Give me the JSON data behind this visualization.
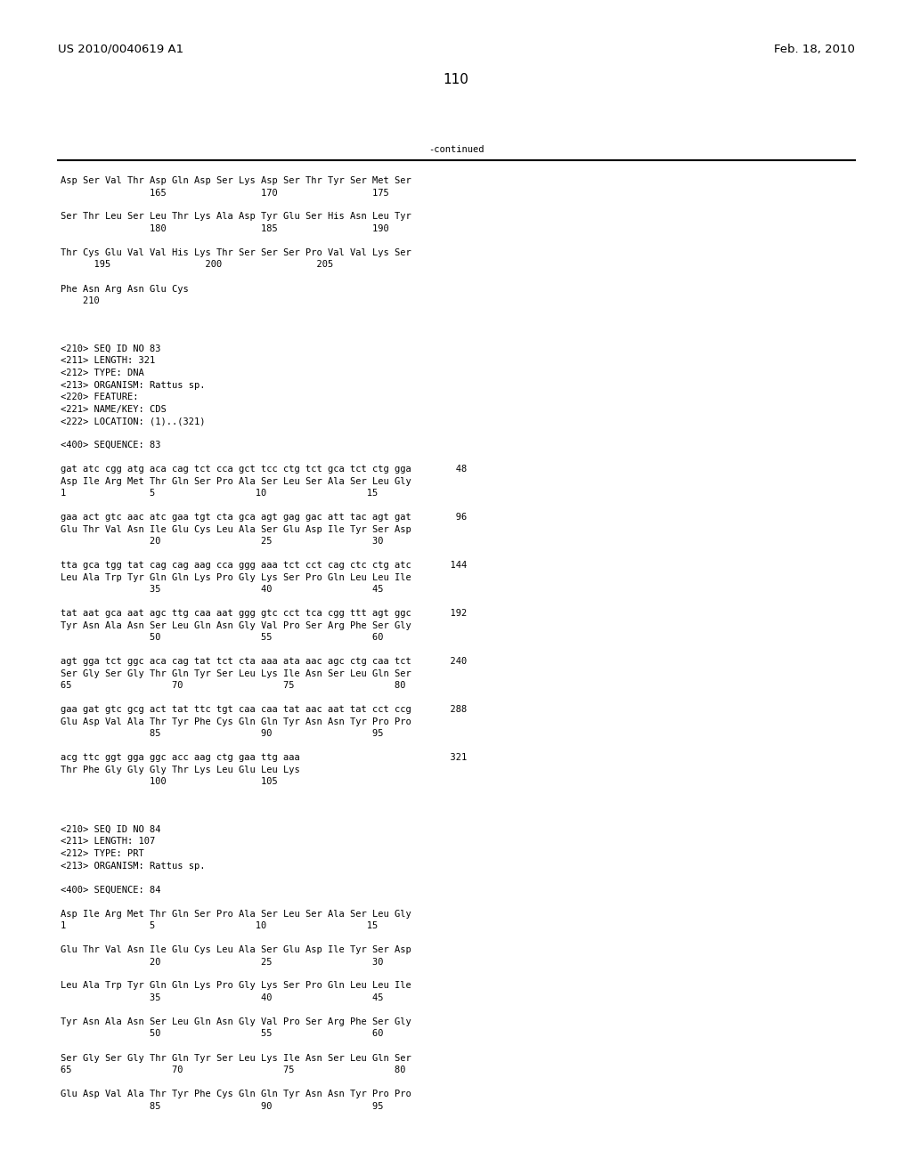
{
  "header_left": "US 2010/0040619 A1",
  "header_right": "Feb. 18, 2010",
  "page_number": "110",
  "continued_label": "-continued",
  "background_color": "#ffffff",
  "text_color": "#000000",
  "font_size": 7.5,
  "mono_font": "DejaVu Sans Mono",
  "header_font_size": 9.5,
  "page_num_font_size": 11,
  "lines": [
    "Asp Ser Val Thr Asp Gln Asp Ser Lys Asp Ser Thr Tyr Ser Met Ser",
    "                165                 170                 175",
    "",
    "Ser Thr Leu Ser Leu Thr Lys Ala Asp Tyr Glu Ser His Asn Leu Tyr",
    "                180                 185                 190",
    "",
    "Thr Cys Glu Val Val His Lys Thr Ser Ser Ser Pro Val Val Lys Ser",
    "      195                 200                 205",
    "",
    "Phe Asn Arg Asn Glu Cys",
    "    210",
    "",
    "",
    "",
    "<210> SEQ ID NO 83",
    "<211> LENGTH: 321",
    "<212> TYPE: DNA",
    "<213> ORGANISM: Rattus sp.",
    "<220> FEATURE:",
    "<221> NAME/KEY: CDS",
    "<222> LOCATION: (1)..(321)",
    "",
    "<400> SEQUENCE: 83",
    "",
    "gat atc cgg atg aca cag tct cca gct tcc ctg tct gca tct ctg gga        48",
    "Asp Ile Arg Met Thr Gln Ser Pro Ala Ser Leu Ser Ala Ser Leu Gly",
    "1               5                  10                  15",
    "",
    "gaa act gtc aac atc gaa tgt cta gca agt gag gac att tac agt gat        96",
    "Glu Thr Val Asn Ile Glu Cys Leu Ala Ser Glu Asp Ile Tyr Ser Asp",
    "                20                  25                  30",
    "",
    "tta gca tgg tat cag cag aag cca ggg aaa tct cct cag ctc ctg atc       144",
    "Leu Ala Trp Tyr Gln Gln Lys Pro Gly Lys Ser Pro Gln Leu Leu Ile",
    "                35                  40                  45",
    "",
    "tat aat gca aat agc ttg caa aat ggg gtc cct tca cgg ttt agt ggc       192",
    "Tyr Asn Ala Asn Ser Leu Gln Asn Gly Val Pro Ser Arg Phe Ser Gly",
    "                50                  55                  60",
    "",
    "agt gga tct ggc aca cag tat tct cta aaa ata aac agc ctg caa tct       240",
    "Ser Gly Ser Gly Thr Gln Tyr Ser Leu Lys Ile Asn Ser Leu Gln Ser",
    "65                  70                  75                  80",
    "",
    "gaa gat gtc gcg act tat ttc tgt caa caa tat aac aat tat cct ccg       288",
    "Glu Asp Val Ala Thr Tyr Phe Cys Gln Gln Tyr Asn Asn Tyr Pro Pro",
    "                85                  90                  95",
    "",
    "acg ttc ggt gga ggc acc aag ctg gaa ttg aaa                           321",
    "Thr Phe Gly Gly Gly Thr Lys Leu Glu Leu Lys",
    "                100                 105",
    "",
    "",
    "",
    "<210> SEQ ID NO 84",
    "<211> LENGTH: 107",
    "<212> TYPE: PRT",
    "<213> ORGANISM: Rattus sp.",
    "",
    "<400> SEQUENCE: 84",
    "",
    "Asp Ile Arg Met Thr Gln Ser Pro Ala Ser Leu Ser Ala Ser Leu Gly",
    "1               5                  10                  15",
    "",
    "Glu Thr Val Asn Ile Glu Cys Leu Ala Ser Glu Asp Ile Tyr Ser Asp",
    "                20                  25                  30",
    "",
    "Leu Ala Trp Tyr Gln Gln Lys Pro Gly Lys Ser Pro Gln Leu Leu Ile",
    "                35                  40                  45",
    "",
    "Tyr Asn Ala Asn Ser Leu Gln Asn Gly Val Pro Ser Arg Phe Ser Gly",
    "                50                  55                  60",
    "",
    "Ser Gly Ser Gly Thr Gln Tyr Ser Leu Lys Ile Asn Ser Leu Gln Ser",
    "65                  70                  75                  80",
    "",
    "Glu Asp Val Ala Thr Tyr Phe Cys Gln Gln Tyr Asn Asn Tyr Pro Pro",
    "                85                  90                  95"
  ]
}
